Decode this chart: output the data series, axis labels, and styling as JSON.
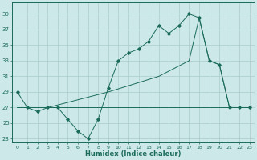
{
  "xlabel": "Humidex (Indice chaleur)",
  "background_color": "#cce8e8",
  "grid_color": "#aacccc",
  "line_color": "#1a6b5a",
  "xlim": [
    -0.5,
    23.5
  ],
  "ylim": [
    22.5,
    40.5
  ],
  "yticks": [
    23,
    25,
    27,
    29,
    31,
    33,
    35,
    37,
    39
  ],
  "xticks": [
    0,
    1,
    2,
    3,
    4,
    5,
    6,
    7,
    8,
    9,
    10,
    11,
    12,
    13,
    14,
    15,
    16,
    17,
    18,
    19,
    20,
    21,
    22,
    23
  ],
  "series1_x": [
    0,
    1,
    2,
    3,
    4,
    5,
    6,
    7,
    8,
    9,
    10,
    11,
    12,
    13,
    14,
    15,
    16,
    17,
    18,
    19,
    20,
    21,
    22,
    23
  ],
  "series1_y": [
    29,
    27,
    26.5,
    27,
    27,
    25.5,
    24,
    23,
    25.5,
    29.5,
    33,
    34,
    34.5,
    35.5,
    37.5,
    36.5,
    37.5,
    39,
    38.5,
    33,
    32.5,
    27,
    27,
    27
  ],
  "series2_x": [
    0,
    21
  ],
  "series2_y": [
    27,
    27
  ],
  "series3_x": [
    0,
    3,
    9,
    14,
    17,
    18,
    19,
    20,
    21,
    22,
    23
  ],
  "series3_y": [
    27,
    27,
    29,
    31,
    33,
    38.5,
    33,
    32.5,
    27,
    27,
    27
  ]
}
